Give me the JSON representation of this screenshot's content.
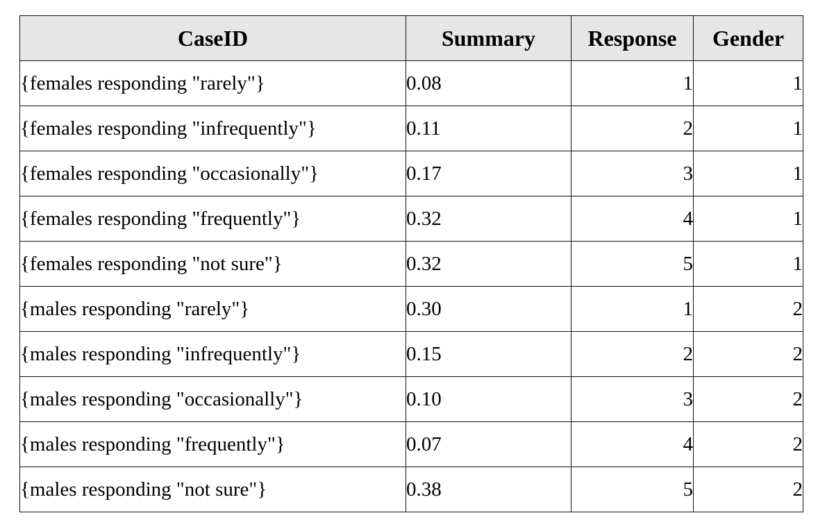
{
  "table": {
    "headers": [
      "CaseID",
      "Summary",
      "Response",
      "Gender"
    ],
    "rows": [
      {
        "caseid": "{females responding \"rarely\"}",
        "summary": "0.08",
        "response": "1",
        "gender": "1"
      },
      {
        "caseid": "{females responding \"infrequently\"}",
        "summary": "0.11",
        "response": "2",
        "gender": "1"
      },
      {
        "caseid": "{females responding \"occasionally\"}",
        "summary": "0.17",
        "response": "3",
        "gender": "1"
      },
      {
        "caseid": "{females responding \"frequently\"}",
        "summary": "0.32",
        "response": "4",
        "gender": "1"
      },
      {
        "caseid": "{females responding \"not sure\"}",
        "summary": "0.32",
        "response": "5",
        "gender": "1"
      },
      {
        "caseid": "{males responding \"rarely\"}",
        "summary": "0.30",
        "response": "1",
        "gender": "2"
      },
      {
        "caseid": "{males responding \"infrequently\"}",
        "summary": "0.15",
        "response": "2",
        "gender": "2"
      },
      {
        "caseid": "{males responding \"occasionally\"}",
        "summary": "0.10",
        "response": "3",
        "gender": "2"
      },
      {
        "caseid": "{males responding \"frequently\"}",
        "summary": "0.07",
        "response": "4",
        "gender": "2"
      },
      {
        "caseid": "{males responding \"not sure\"}",
        "summary": "0.38",
        "response": "5",
        "gender": "2"
      }
    ]
  },
  "colors": {
    "header_bg": "#e6e6e6",
    "border": "#111111",
    "text": "#000000"
  }
}
